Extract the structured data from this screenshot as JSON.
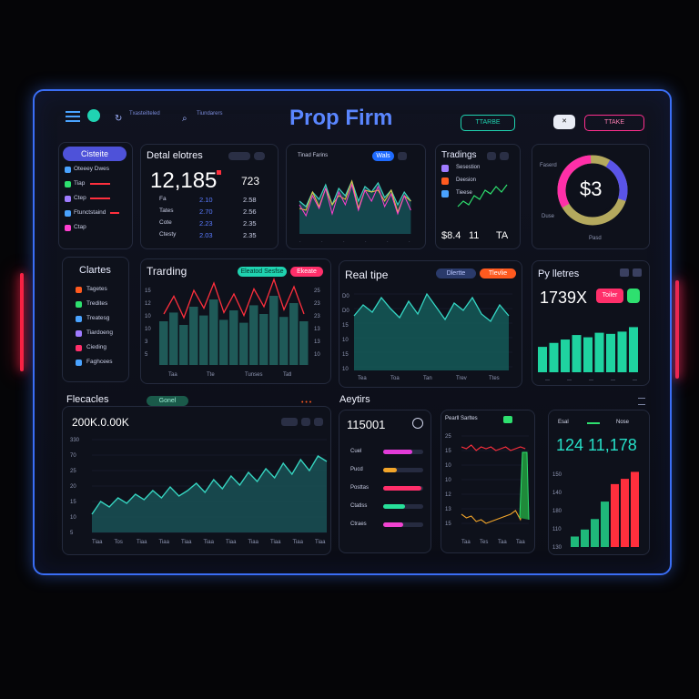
{
  "app": {
    "title": "Prop Firm",
    "trade_button": "TTARBE",
    "trade_button2": "TTAKE",
    "close_glyph": "✕",
    "nav_item1": "Txasteilteled",
    "nav_item2": "Tiundarers"
  },
  "sidebar": {
    "top_button": "Cisteite",
    "items": [
      "Oteeey Dwes",
      "Tiap",
      "Ctep",
      "Ftunctstaind",
      "Ctap"
    ],
    "section_title": "Clartes",
    "section_items": [
      "Tagetes",
      "Tredites",
      "Treatesg",
      "Tiardoeng",
      "Cieding",
      "Faghcees"
    ]
  },
  "detail": {
    "title": "Detal elotres",
    "big_value": "12,185",
    "side_value": "723",
    "rows": [
      [
        "Fa",
        "2.10",
        "2.58"
      ],
      [
        "Tates",
        "2.70",
        "2.56"
      ],
      [
        "Cote",
        "2.23",
        "2.35"
      ],
      [
        "Ctesty",
        "2.03",
        "2.35"
      ]
    ]
  },
  "trend_top": {
    "title": "Tinad Farins",
    "chip": "Wals"
  },
  "trading_top": {
    "title": "Tradings",
    "items": [
      "Sesestion",
      "Deesion",
      "Tieese"
    ],
    "stats": [
      "$8.4",
      "11",
      "TA"
    ]
  },
  "donut": {
    "center": "$3",
    "label_left": "Faserd",
    "label_bottom": "Duse",
    "label_right": "Pasd",
    "percent": 0.72
  },
  "trading_mid": {
    "title": "Trarding",
    "chip1": "Eleatod Sesfse",
    "chip2": "Ekeate",
    "y_labels": [
      "15",
      "12",
      "10",
      "10",
      "3",
      "5"
    ],
    "x_labels": [
      "Taa",
      "Tte",
      "Tunses",
      "Tatl"
    ],
    "right_labels": [
      "25",
      "23",
      "23",
      "13",
      "13",
      "10"
    ]
  },
  "realtime": {
    "title": "Real tipe",
    "chip1": "Dlertte",
    "chip2": "Tlevlie",
    "y_labels": [
      "D0",
      "D0",
      "15",
      "10",
      "15",
      "10"
    ],
    "x_labels": [
      "Tea",
      "Toa",
      "Tan",
      "Trev",
      "Ttes"
    ]
  },
  "pybetres": {
    "title": "Py lletres",
    "value": "1739X",
    "chip": "Toiler"
  },
  "forecast": {
    "title": "Flecacles",
    "chip": "Gonel",
    "value": "200K.0.00K",
    "y_labels": [
      "330",
      "70",
      "25",
      "20",
      "15",
      "10",
      "5"
    ],
    "x_labels": [
      "Tiaa",
      "Tos",
      "Tiaa",
      "Tiaa",
      "Tiaa",
      "Tiaa",
      "Tiaa",
      "Tiaa",
      "Tiaa",
      "Tiaa",
      "Tiaa"
    ]
  },
  "analytics": {
    "title": "Aeytirs",
    "value": "115001",
    "bars": [
      {
        "label": "Cuel",
        "fill": 0.72,
        "color": "#e23bd8"
      },
      {
        "label": "Pucd",
        "fill": 0.35,
        "color": "#f2a52a"
      },
      {
        "label": "Posttas",
        "fill": 0.95,
        "color": "#ff2f6a"
      },
      {
        "label": "Ctatlss",
        "fill": 0.55,
        "color": "#27e09a"
      },
      {
        "label": "Ctraes",
        "fill": 0.5,
        "color": "#f043d0"
      }
    ]
  },
  "pearl": {
    "title": "Pearll Sarltes",
    "y_labels": [
      "25",
      "15",
      "10",
      "10",
      "12",
      "13",
      "15"
    ],
    "x_labels": [
      "Taa",
      "Tes",
      "Taa",
      "Taa"
    ]
  },
  "bottom_right": {
    "legend1": "Esal",
    "legend2": "Nose",
    "value": "124 11,178",
    "y_labels": [
      "150",
      "140",
      "180",
      "110",
      "130"
    ]
  },
  "colors": {
    "accent": "#3a6ef5",
    "teal": "#1fd3b0",
    "magenta": "#ff2f8e",
    "red": "#ff1f3d",
    "green": "#2ee06f"
  }
}
